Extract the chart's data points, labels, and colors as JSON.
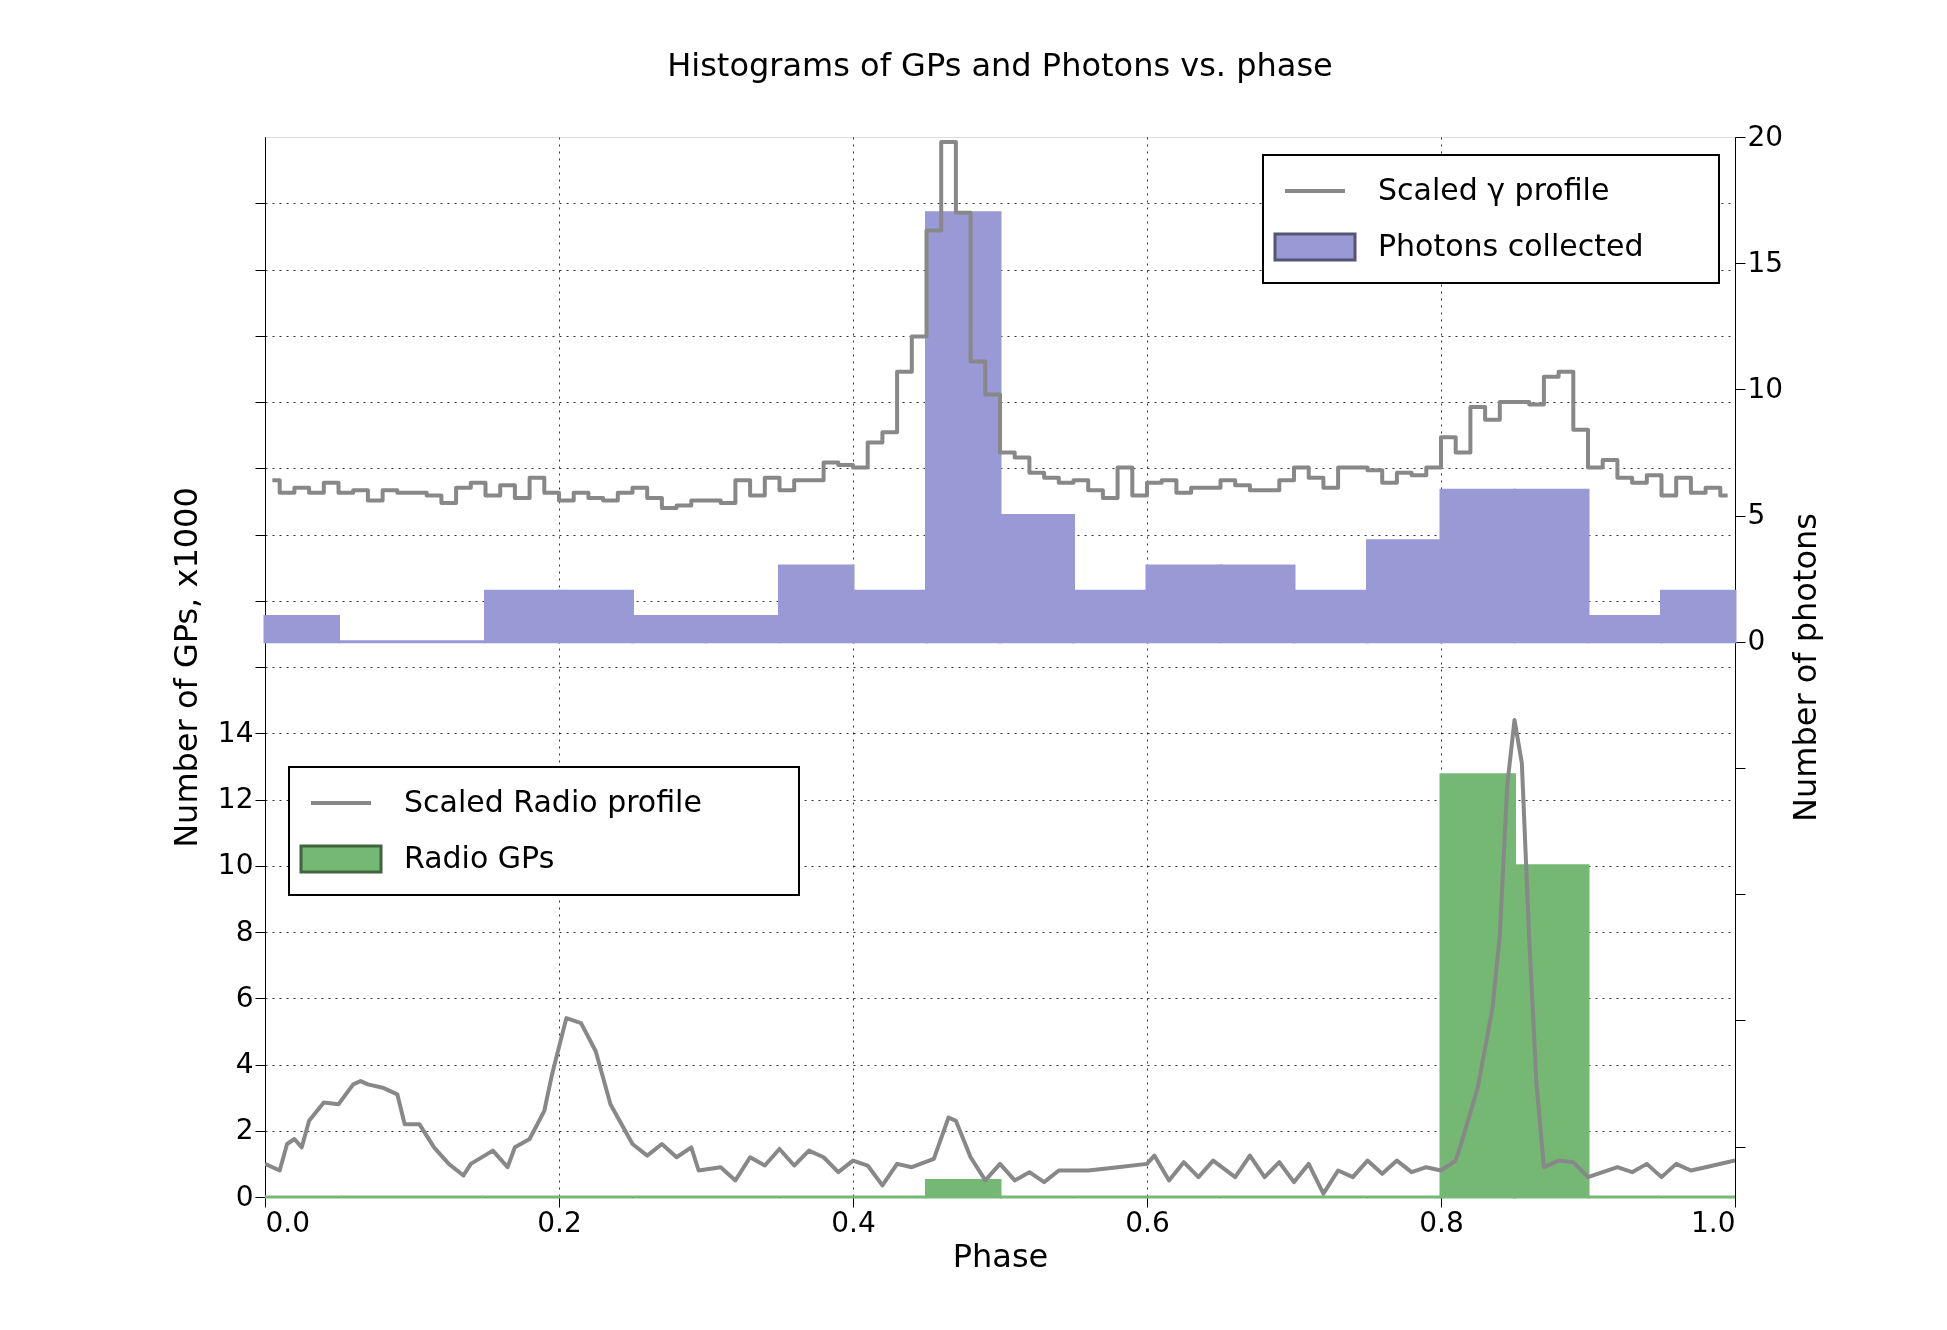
{
  "chart_data": {
    "type": "histogram",
    "title": "Histograms of GPs and Photons vs. phase",
    "xlabel": "Phase",
    "ylabel": "Number of GPs, x1000",
    "y2label": "Number of photons",
    "bins": [
      0,
      0.05,
      0.1,
      0.15,
      0.2,
      0.25,
      0.3,
      0.35,
      0.4,
      0.45,
      0.5,
      0.55,
      0.6,
      0.65,
      0.7,
      0.75,
      0.8,
      0.85,
      0.9,
      0.95,
      1.0
    ],
    "series": [
      {
        "name": "Scaled γ profile",
        "type": "step",
        "axis": "y2",
        "color": "#888888",
        "x": [
          0.005,
          0.015,
          0.025,
          0.035,
          0.045,
          0.055,
          0.065,
          0.075,
          0.085,
          0.095,
          0.105,
          0.115,
          0.125,
          0.135,
          0.145,
          0.155,
          0.165,
          0.175,
          0.185,
          0.195,
          0.205,
          0.215,
          0.225,
          0.235,
          0.245,
          0.255,
          0.265,
          0.275,
          0.285,
          0.295,
          0.305,
          0.315,
          0.325,
          0.335,
          0.345,
          0.355,
          0.365,
          0.375,
          0.385,
          0.395,
          0.405,
          0.415,
          0.425,
          0.435,
          0.445,
          0.455,
          0.465,
          0.475,
          0.485,
          0.495,
          0.505,
          0.515,
          0.525,
          0.535,
          0.545,
          0.555,
          0.565,
          0.575,
          0.585,
          0.595,
          0.605,
          0.615,
          0.625,
          0.635,
          0.645,
          0.655,
          0.665,
          0.675,
          0.685,
          0.695,
          0.705,
          0.715,
          0.725,
          0.735,
          0.745,
          0.755,
          0.765,
          0.775,
          0.785,
          0.795,
          0.805,
          0.815,
          0.825,
          0.835,
          0.845,
          0.855,
          0.865,
          0.875,
          0.885,
          0.895,
          0.905,
          0.915,
          0.925,
          0.935,
          0.945,
          0.955,
          0.965,
          0.975,
          0.985,
          0.995
        ],
        "values": [
          6.4,
          5.9,
          6.1,
          5.9,
          6.3,
          5.9,
          6.0,
          5.6,
          6.0,
          5.9,
          5.9,
          5.8,
          5.5,
          6.1,
          6.3,
          5.8,
          6.2,
          5.7,
          6.5,
          5.9,
          5.6,
          5.9,
          5.7,
          5.6,
          5.9,
          6.1,
          5.7,
          5.3,
          5.4,
          5.6,
          5.6,
          5.5,
          6.4,
          5.8,
          6.5,
          6.0,
          6.4,
          6.4,
          7.1,
          7.0,
          6.9,
          7.9,
          8.3,
          10.7,
          12.1,
          16.3,
          19.8,
          17.0,
          11.1,
          9.8,
          7.5,
          7.3,
          6.7,
          6.5,
          6.3,
          6.4,
          6.0,
          5.7,
          6.9,
          5.8,
          6.3,
          6.4,
          5.9,
          6.1,
          6.1,
          6.4,
          6.2,
          6.0,
          6.0,
          6.4,
          6.9,
          6.5,
          6.1,
          6.9,
          6.9,
          6.8,
          6.3,
          6.7,
          6.6,
          6.9,
          8.1,
          7.5,
          9.3,
          8.8,
          9.5,
          9.5,
          9.4,
          10.5,
          10.7,
          8.4,
          6.9,
          7.2,
          6.5,
          6.3,
          6.6,
          5.8,
          6.5,
          5.9,
          6.1,
          5.8
        ]
      },
      {
        "name": "Photons collected",
        "axis": "y2",
        "color": "#9999d6",
        "values": [
          1,
          0,
          0,
          2,
          2,
          1,
          1,
          3,
          2,
          17,
          5,
          2,
          3,
          3,
          2,
          4,
          6,
          6,
          1,
          2
        ]
      },
      {
        "name": "Scaled Radio profile",
        "type": "line",
        "axis": "y",
        "color": "#888888",
        "x": [
          0,
          0.01,
          0.015,
          0.02,
          0.025,
          0.03,
          0.04,
          0.05,
          0.06,
          0.065,
          0.07,
          0.08,
          0.09,
          0.095,
          0.105,
          0.115,
          0.125,
          0.135,
          0.14,
          0.155,
          0.165,
          0.17,
          0.18,
          0.19,
          0.195,
          0.205,
          0.215,
          0.225,
          0.235,
          0.25,
          0.26,
          0.27,
          0.28,
          0.29,
          0.295,
          0.31,
          0.32,
          0.33,
          0.34,
          0.35,
          0.36,
          0.37,
          0.38,
          0.39,
          0.4,
          0.41,
          0.42,
          0.43,
          0.44,
          0.455,
          0.465,
          0.47,
          0.48,
          0.49,
          0.5,
          0.51,
          0.52,
          0.53,
          0.54,
          0.56,
          0.58,
          0.6,
          0.605,
          0.615,
          0.625,
          0.635,
          0.645,
          0.66,
          0.67,
          0.68,
          0.69,
          0.7,
          0.71,
          0.72,
          0.73,
          0.74,
          0.75,
          0.76,
          0.77,
          0.78,
          0.79,
          0.8,
          0.81,
          0.815,
          0.825,
          0.835,
          0.84,
          0.845,
          0.85,
          0.855,
          0.86,
          0.865,
          0.87,
          0.88,
          0.89,
          0.9,
          0.91,
          0.92,
          0.93,
          0.94,
          0.95,
          0.96,
          0.97,
          0.98,
          1.0
        ],
        "values": [
          1.0,
          0.8,
          1.6,
          1.75,
          1.5,
          2.3,
          2.85,
          2.8,
          3.4,
          3.5,
          3.4,
          3.3,
          3.1,
          2.2,
          2.2,
          1.5,
          1.0,
          0.65,
          1.0,
          1.4,
          0.9,
          1.5,
          1.75,
          2.6,
          3.65,
          5.4,
          5.25,
          4.4,
          2.8,
          1.6,
          1.25,
          1.6,
          1.2,
          1.5,
          0.8,
          0.9,
          0.5,
          1.2,
          0.95,
          1.45,
          0.95,
          1.4,
          1.2,
          0.75,
          1.1,
          0.95,
          0.35,
          1.0,
          0.9,
          1.15,
          2.4,
          2.3,
          1.2,
          0.5,
          1.0,
          0.5,
          0.75,
          0.45,
          0.8,
          0.8,
          0.9,
          1.0,
          1.25,
          0.5,
          1.05,
          0.6,
          1.1,
          0.6,
          1.25,
          0.6,
          1.05,
          0.45,
          1.0,
          0.1,
          0.8,
          0.6,
          1.1,
          0.7,
          1.1,
          0.75,
          0.9,
          0.8,
          1.1,
          1.8,
          3.3,
          5.7,
          7.9,
          12.4,
          14.4,
          13.1,
          7.8,
          3.4,
          0.9,
          1.1,
          1.05,
          0.6,
          0.75,
          0.9,
          0.75,
          1.0,
          0.6,
          1.0,
          0.8,
          0.9,
          1.1
        ]
      },
      {
        "name": "Radio GPs",
        "axis": "y",
        "color": "#74b874",
        "values": [
          0,
          0,
          0,
          0,
          0,
          0,
          0,
          0,
          0,
          0.5,
          0,
          0,
          0,
          0,
          0,
          0,
          12.75,
          10,
          0,
          0
        ]
      }
    ],
    "xlim": [
      0,
      1.0
    ],
    "xticks": [
      {
        "value": 0,
        "label": "0.0"
      },
      0.2,
      0.4,
      0.6,
      0.8,
      {
        "value": 1.0,
        "label": "1.0"
      }
    ],
    "ylim": [
      0,
      32
    ],
    "yticks": [
      0,
      2,
      4,
      6,
      8,
      10,
      12,
      14,
      {
        "value": 16,
        "label": null
      },
      {
        "value": 18,
        "label": null
      },
      {
        "value": 20,
        "label": null
      },
      {
        "value": 22,
        "label": null
      },
      {
        "value": 24,
        "label": null
      },
      {
        "value": 26,
        "label": null
      },
      {
        "value": 28,
        "label": null
      },
      {
        "value": 30,
        "label": null
      }
    ],
    "y2lim": [
      -22,
      20
    ],
    "y2ticks": [
      {
        "value": -20,
        "label": null
      },
      {
        "value": -15,
        "label": null
      },
      {
        "value": -10,
        "label": null
      },
      {
        "value": -5,
        "label": null
      },
      0,
      5,
      10,
      15,
      20
    ],
    "grid": true,
    "legend": "top right"
  }
}
